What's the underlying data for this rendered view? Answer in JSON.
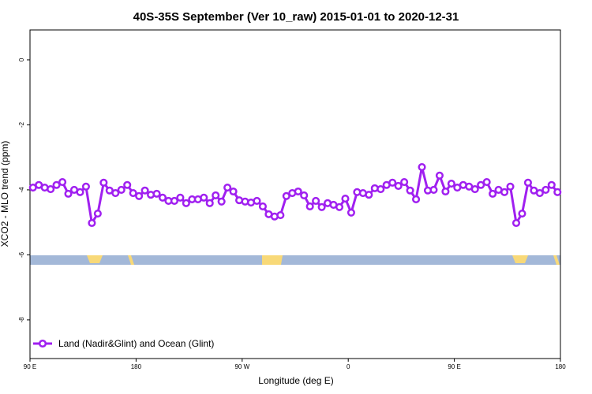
{
  "chart_data": {
    "type": "line",
    "title": "40S-35S September (Ver 10_raw)   2015-01-01 to 2020-12-31",
    "x_label": "Longitude (deg E)",
    "y_label": "XCO2 - MLO trend (ppm)",
    "xlim": [
      90,
      540
    ],
    "ylim": [
      -9.19,
      0.92
    ],
    "xticks": [
      {
        "value": 90,
        "label": "90 E"
      },
      180,
      {
        "value": 270,
        "label": "90 W"
      },
      {
        "value": 360,
        "label": "0"
      },
      {
        "value": 450,
        "label": "90 E"
      },
      {
        "value": 540,
        "label": "180"
      }
    ],
    "yticks": [
      0,
      -2,
      -4,
      -6,
      -8
    ],
    "legend_position": "bottom-left",
    "x": [
      92.5,
      97.5,
      102.5,
      107.5,
      112.5,
      117.5,
      122.5,
      127.5,
      132.5,
      137.5,
      142.5,
      147.5,
      152.5,
      157.5,
      162.5,
      167.5,
      172.5,
      177.5,
      182.5,
      187.5,
      192.5,
      197.5,
      202.5,
      207.5,
      212.5,
      217.5,
      222.5,
      227.5,
      232.5,
      237.5,
      242.5,
      247.5,
      252.5,
      257.5,
      262.5,
      267.5,
      272.5,
      277.5,
      282.5,
      287.5,
      292.5,
      297.5,
      302.5,
      307.5,
      312.5,
      317.5,
      322.5,
      327.5,
      332.5,
      337.5,
      342.5,
      347.5,
      352.5,
      357.5,
      362.5,
      367.5,
      372.5,
      377.5,
      382.5,
      387.5,
      392.5,
      397.5,
      402.5,
      407.5,
      412.5,
      417.5,
      422.5,
      427.5,
      432.5,
      437.5,
      442.5,
      447.5,
      452.5,
      457.5,
      462.5,
      467.5,
      472.5,
      477.5,
      482.5,
      487.5,
      492.5,
      497.5,
      502.5,
      507.5,
      512.5,
      517.5,
      522.5,
      527.5,
      532.5,
      537.5
    ],
    "series": [
      {
        "name": "Land (Nadir&Glint) and Ocean (Glint)",
        "color": "#a020f0",
        "values": [
          -3.93,
          -3.85,
          -3.93,
          -3.98,
          -3.85,
          -3.76,
          -4.12,
          -4.0,
          -4.07,
          -3.9,
          -5.02,
          -4.73,
          -3.78,
          -4.02,
          -4.1,
          -4.0,
          -3.85,
          -4.1,
          -4.19,
          -4.02,
          -4.15,
          -4.12,
          -4.24,
          -4.34,
          -4.34,
          -4.24,
          -4.41,
          -4.29,
          -4.29,
          -4.24,
          -4.41,
          -4.17,
          -4.36,
          -3.93,
          -4.05,
          -4.32,
          -4.36,
          -4.39,
          -4.34,
          -4.51,
          -4.75,
          -4.82,
          -4.78,
          -4.19,
          -4.1,
          -4.05,
          -4.17,
          -4.51,
          -4.34,
          -4.53,
          -4.41,
          -4.46,
          -4.53,
          -4.27,
          -4.7,
          -4.07,
          -4.1,
          -4.15,
          -3.95,
          -3.98,
          -3.85,
          -3.78,
          -3.88,
          -3.76,
          -4.02,
          -4.29,
          -3.3,
          -4.02,
          -4.0,
          -3.56,
          -4.05,
          -3.81,
          -3.93,
          -3.85,
          -3.9,
          -3.98,
          -3.85,
          -3.76,
          -4.12,
          -4.0,
          -4.07,
          -3.9,
          -5.02,
          -4.73,
          -3.78,
          -4.02,
          -4.1,
          -4.0,
          -3.85,
          -4.07
        ]
      }
    ]
  }
}
